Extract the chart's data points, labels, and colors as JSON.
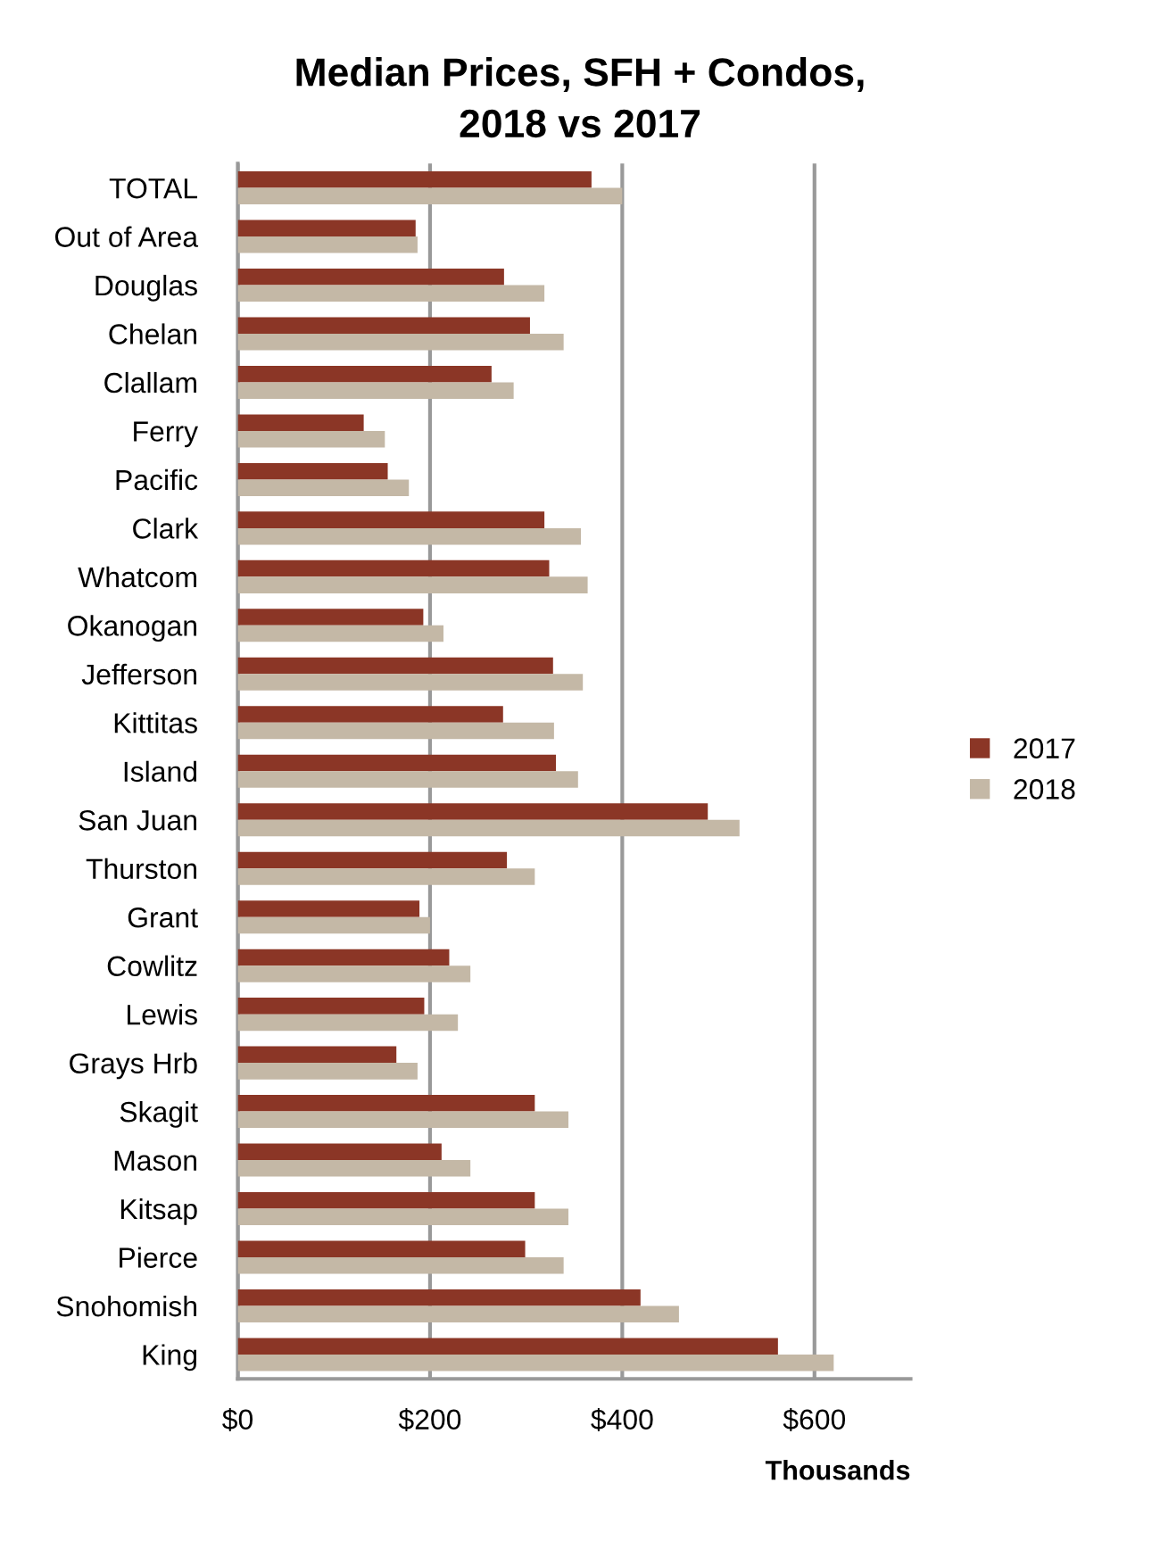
{
  "chart_data": {
    "type": "bar",
    "orientation": "horizontal",
    "title": "Median Prices, SFH + Condos,\n2018 vs 2017",
    "xlabel": "Thousands",
    "categories": [
      "TOTAL",
      "Out of Area",
      "Douglas",
      "Chelan",
      "Clallam",
      "Ferry",
      "Pacific",
      "Clark",
      "Whatcom",
      "Okanogan",
      "Jefferson",
      "Kittitas",
      "Island",
      "San Juan",
      "Thurston",
      "Grant",
      "Cowlitz",
      "Lewis",
      "Grays Hrb",
      "Skagit",
      "Mason",
      "Kitsap",
      "Pierce",
      "Snohomish",
      "King"
    ],
    "series": [
      {
        "name": "2017",
        "color": "#8b3626",
        "values": [
          368,
          185,
          277,
          304,
          264,
          131,
          156,
          319,
          324,
          193,
          328,
          276,
          331,
          489,
          280,
          189,
          220,
          194,
          165,
          309,
          212,
          309,
          299,
          419,
          562
        ]
      },
      {
        "name": "2018",
        "color": "#c4b8a6",
        "values": [
          400,
          187,
          319,
          339,
          287,
          153,
          178,
          357,
          364,
          214,
          359,
          329,
          354,
          522,
          309,
          200,
          242,
          229,
          187,
          344,
          242,
          344,
          339,
          459,
          620
        ]
      }
    ],
    "xlim": [
      0,
      700
    ],
    "xticks": [
      {
        "value": 0,
        "label": "$0"
      },
      {
        "value": 200,
        "label": "$200"
      },
      {
        "value": 400,
        "label": "$400"
      },
      {
        "value": 600,
        "label": "$600"
      }
    ],
    "grid": "x",
    "legend": "right"
  }
}
